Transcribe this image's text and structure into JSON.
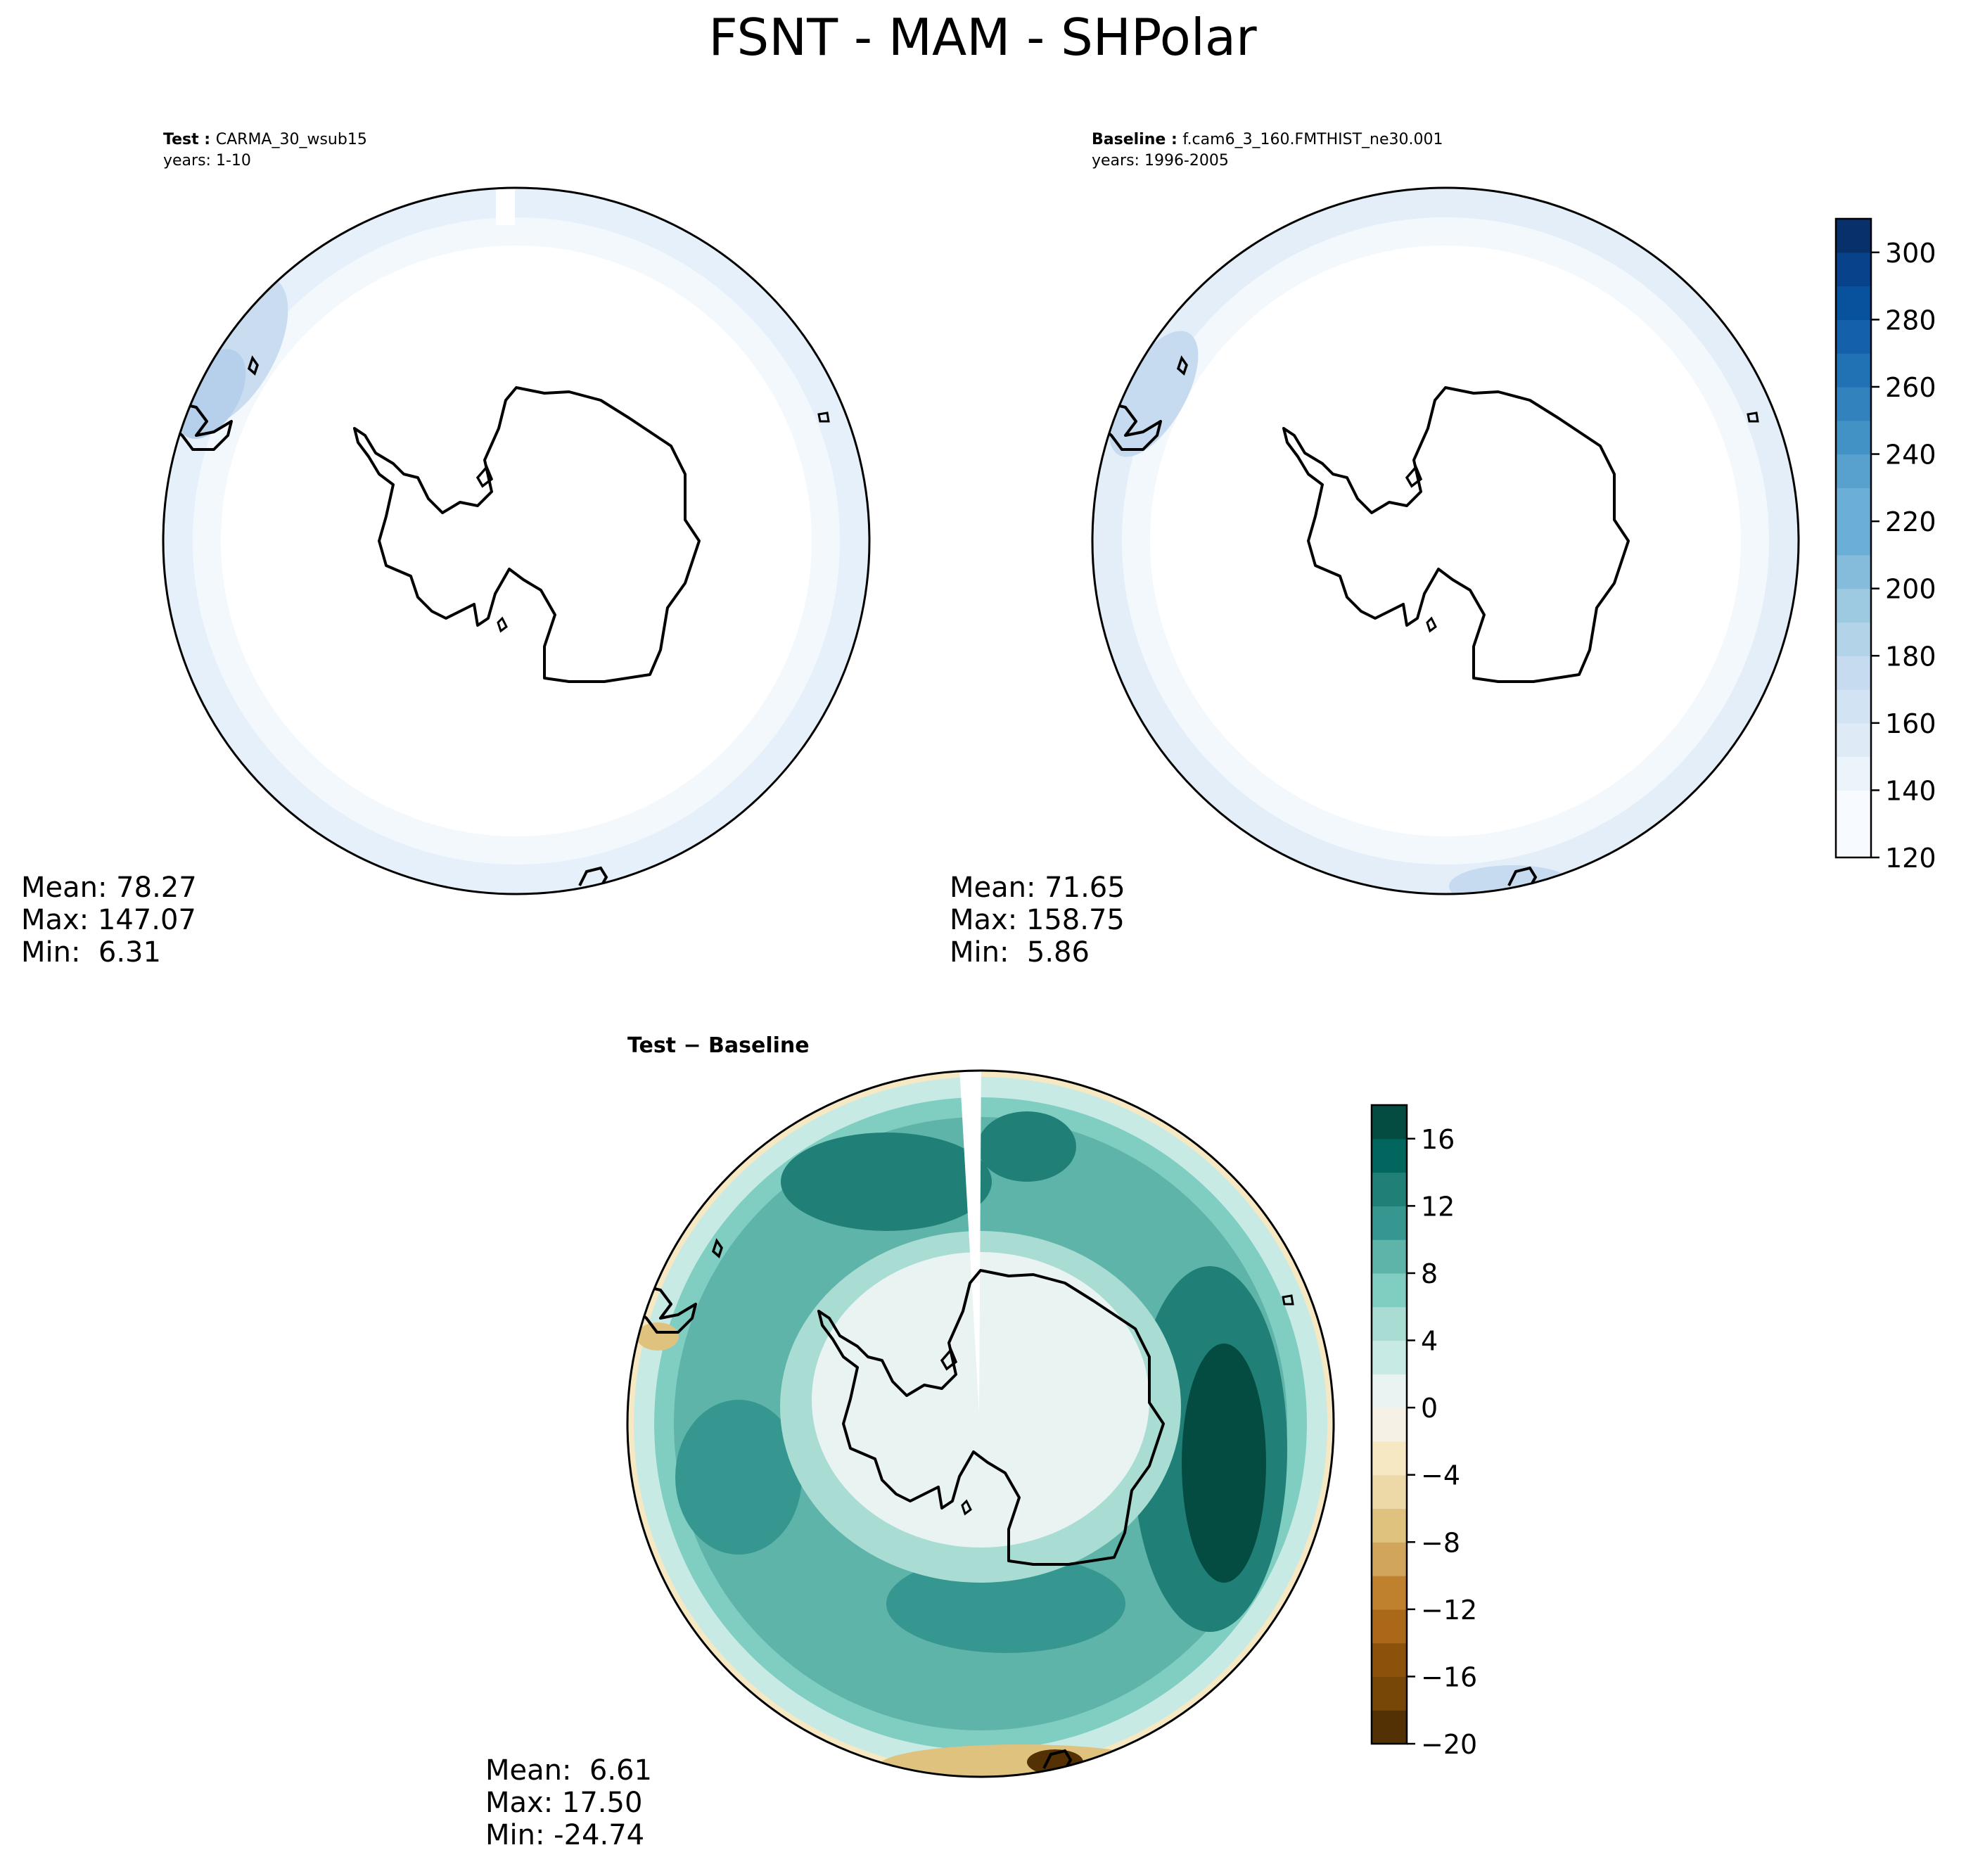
{
  "figure_title": "FSNT - MAM - SHPolar",
  "colors": {
    "seq": [
      "#f7fbff",
      "#ebf3fb",
      "#deebf7",
      "#d2e3f3",
      "#c6dbef",
      "#b3d3e8",
      "#9ecae1",
      "#85bcdc",
      "#6baed6",
      "#58a1cf",
      "#4292c6",
      "#3282be",
      "#2171b5",
      "#1561a9",
      "#08519c",
      "#08428a",
      "#08306b"
    ],
    "div": [
      "#543005",
      "#774707",
      "#8c510a",
      "#aa6818",
      "#bf812d",
      "#d1a55b",
      "#dfc27d",
      "#ecd9a7",
      "#f6e8c3",
      "#f5f1e5",
      "#e8f3f2",
      "#c7eae5",
      "#a9ddd4",
      "#80cdc1",
      "#5fb4a9",
      "#35978f",
      "#208078",
      "#01665e",
      "#044c42"
    ]
  },
  "chart_data": [
    {
      "type": "heatmap",
      "title_bold": "Test",
      "title_rest": "CARMA_30_wsub15",
      "subtitle": "years: 1-10",
      "stats": {
        "mean": "Mean: 78.27",
        "max": "Max: 147.07",
        "min": "Min:  6.31"
      },
      "colorbar_shared": true
    },
    {
      "type": "heatmap",
      "title_bold": "Baseline",
      "title_rest": "f.cam6_3_160.FMTHIST_ne30.001",
      "subtitle": "years: 1996-2005",
      "stats": {
        "mean": "Mean: 71.65",
        "max": "Max: 158.75",
        "min": "Min:  5.86"
      },
      "colorbar": {
        "vmin": 120,
        "vmax": 310,
        "step": 10,
        "ticks": [
          120,
          140,
          160,
          180,
          200,
          220,
          240,
          260,
          280,
          300
        ]
      }
    },
    {
      "type": "heatmap",
      "title_bold": "Test − Baseline",
      "stats": {
        "mean": "Mean:  6.61",
        "max": "Max: 17.50",
        "min": "Min: -24.74"
      },
      "colorbar": {
        "vmin": -20,
        "vmax": 18,
        "step": 2,
        "ticks": [
          -20,
          -16,
          -12,
          -8,
          -4,
          0,
          4,
          8,
          12,
          16
        ],
        "tick_labels": [
          "−20",
          "−16",
          "−12",
          "−8",
          "−4",
          "0",
          "4",
          "8",
          "12",
          "16"
        ]
      }
    }
  ]
}
